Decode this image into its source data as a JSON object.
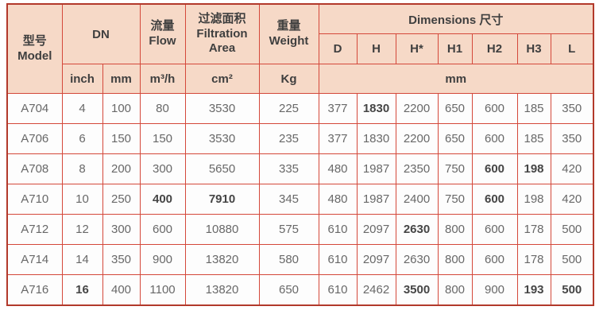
{
  "table": {
    "header": {
      "model_zh": "型号",
      "model_en": "Model",
      "dn": "DN",
      "flow_zh": "流量",
      "flow_en": "Flow",
      "filtration_zh": "过滤面积",
      "filtration_en_1": "Filtration",
      "filtration_en_2": "Area",
      "weight_zh": "重量",
      "weight_en": "Weight",
      "dimensions": "Dimensions 尺寸",
      "dim_columns": [
        "D",
        "H",
        "H*",
        "H1",
        "H2",
        "H3",
        "L"
      ],
      "units": {
        "inch": "inch",
        "mm": "mm",
        "flow": "m³/h",
        "area": "cm²",
        "weight": "Kg",
        "dims": "mm"
      }
    },
    "rows": [
      [
        "A704",
        "4",
        "100",
        "80",
        "3530",
        "225",
        "377",
        "1830",
        "2200",
        "650",
        "600",
        "185",
        "350"
      ],
      [
        "A706",
        "6",
        "150",
        "150",
        "3530",
        "235",
        "377",
        "1830",
        "2200",
        "650",
        "600",
        "185",
        "350"
      ],
      [
        "A708",
        "8",
        "200",
        "300",
        "5650",
        "335",
        "480",
        "1987",
        "2350",
        "750",
        "600",
        "198",
        "420"
      ],
      [
        "A710",
        "10",
        "250",
        "400",
        "7910",
        "345",
        "480",
        "1987",
        "2400",
        "750",
        "600",
        "198",
        "420"
      ],
      [
        "A712",
        "12",
        "300",
        "600",
        "10880",
        "575",
        "610",
        "2097",
        "2630",
        "800",
        "600",
        "178",
        "500"
      ],
      [
        "A714",
        "14",
        "350",
        "900",
        "13820",
        "580",
        "610",
        "2097",
        "2630",
        "800",
        "600",
        "178",
        "500"
      ],
      [
        "A716",
        "16",
        "400",
        "1100",
        "13820",
        "650",
        "610",
        "2462",
        "3500",
        "800",
        "900",
        "193",
        "500"
      ]
    ],
    "bold_cells": [
      [
        0,
        7
      ],
      [
        2,
        10
      ],
      [
        2,
        11
      ],
      [
        3,
        3
      ],
      [
        3,
        4
      ],
      [
        3,
        10
      ],
      [
        4,
        8
      ],
      [
        6,
        1
      ],
      [
        6,
        8
      ],
      [
        6,
        11
      ],
      [
        6,
        12
      ]
    ]
  },
  "colors": {
    "header_background": "#f6d9c7",
    "body_background": "#fdfdfd",
    "inner_border": "#d4483a",
    "outer_border": "#b2392b",
    "header_text": "#3f3f3f",
    "body_text": "#686868"
  }
}
